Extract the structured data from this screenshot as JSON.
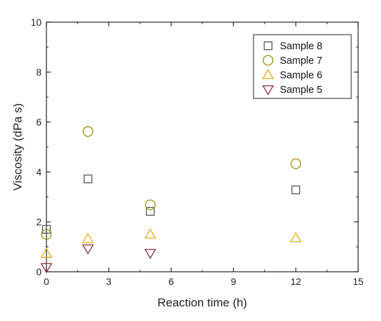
{
  "chart_data": {
    "type": "scatter",
    "xlabel": "Reaction time (h)",
    "ylabel": "Viscosity (dPa s)",
    "xlim": [
      0,
      15
    ],
    "ylim": [
      0,
      10
    ],
    "xticks": [
      0,
      3,
      6,
      9,
      12,
      15
    ],
    "yticks": [
      0,
      2,
      4,
      6,
      8,
      10
    ],
    "grid": false,
    "legend_position": "top-right",
    "series": [
      {
        "name": "Sample 8",
        "marker": "square",
        "color": "#555555",
        "x": [
          0,
          2,
          5,
          12
        ],
        "y": [
          1.7,
          3.72,
          2.42,
          3.28
        ]
      },
      {
        "name": "Sample 7",
        "marker": "circle",
        "color": "#9a9000",
        "x": [
          0,
          2,
          5,
          12
        ],
        "y": [
          1.5,
          5.62,
          2.68,
          4.33
        ]
      },
      {
        "name": "Sample 6",
        "marker": "triangle-up",
        "color": "#e6a817",
        "x": [
          0,
          2,
          5,
          12
        ],
        "y": [
          0.72,
          1.32,
          1.5,
          1.35
        ]
      },
      {
        "name": "Sample 5",
        "marker": "triangle-down",
        "color": "#8b2a3a",
        "x": [
          0,
          2,
          5
        ],
        "y": [
          0.18,
          0.93,
          0.75
        ]
      }
    ]
  }
}
